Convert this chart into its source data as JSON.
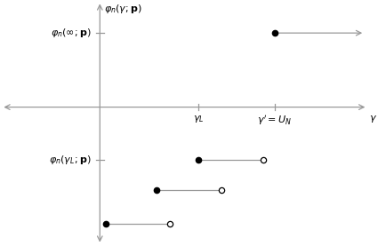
{
  "fig_width": 4.25,
  "fig_height": 2.77,
  "dpi": 100,
  "axis_color": "#999999",
  "line_color": "#999999",
  "text_color": "#000000",
  "background_color": "#ffffff",
  "xlim": [
    -3.5,
    9.5
  ],
  "ylim": [
    -6.5,
    5.0
  ],
  "x_axis_y": 0.0,
  "y_axis_x": 0.0,
  "gamma_L": 3.5,
  "gamma_UN": 6.2,
  "phi_inf": 3.5,
  "phi_gammaL": -2.5,
  "segments_lower": [
    {
      "x_start": 3.5,
      "x_end": 5.8,
      "y": -2.5
    },
    {
      "x_start": 2.0,
      "x_end": 4.3,
      "y": -3.9
    },
    {
      "x_start": 0.2,
      "x_end": 2.5,
      "y": -5.5
    }
  ],
  "upper_segment": {
    "x_start": 6.2,
    "y": 3.5
  },
  "labels": {
    "phi_inf_text": "$\\varphi_n(\\infty; \\mathbf{p})$",
    "phi_gammaL_text": "$\\varphi_n(\\gamma_L; \\mathbf{p})$",
    "gamma_L_text": "$\\gamma_L$",
    "gamma_UN_text": "$\\gamma' = U_N$",
    "gamma_text": "$\\gamma$",
    "y_axis_label": "$\\varphi_n(\\gamma; \\mathbf{p})$"
  },
  "fontsize": 8,
  "fontsize_axis": 8
}
